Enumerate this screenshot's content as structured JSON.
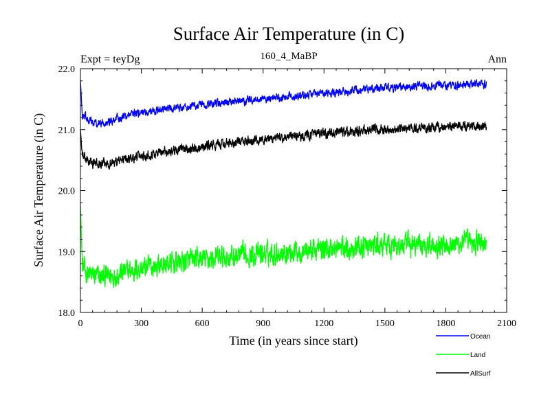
{
  "chart_data": {
    "type": "line",
    "title": "Surface Air Temperature (in C)",
    "subtitle": "160_4_MaBP",
    "left_label": "Expt = teyDg",
    "right_label": "Ann",
    "xlabel": "Time (in years since start)",
    "ylabel": "Surface Air Temperature (in C)",
    "xlim": [
      0,
      2100
    ],
    "ylim": [
      18.0,
      22.0
    ],
    "xticks": [
      0,
      300,
      600,
      900,
      1200,
      1500,
      1800,
      2100
    ],
    "xtick_labels": [
      "0",
      "300",
      "600",
      "900",
      "1200",
      "1500",
      "1800",
      "2100"
    ],
    "yticks": [
      18.0,
      19.0,
      20.0,
      21.0,
      22.0
    ],
    "ytick_labels": [
      "18.0",
      "19.0",
      "20.0",
      "21.0",
      "22.0"
    ],
    "legend_position": "bottom-right, outside plot",
    "series": [
      {
        "name": "Ocean",
        "color": "#0000ff",
        "x": [
          0,
          10,
          30,
          60,
          100,
          150,
          200,
          300,
          400,
          500,
          600,
          700,
          800,
          900,
          1000,
          1100,
          1200,
          1300,
          1400,
          1500,
          1600,
          1700,
          1800,
          1900,
          2000
        ],
        "values": [
          21.8,
          21.25,
          21.2,
          21.12,
          21.1,
          21.15,
          21.2,
          21.28,
          21.33,
          21.37,
          21.4,
          21.43,
          21.47,
          21.5,
          21.53,
          21.57,
          21.6,
          21.63,
          21.66,
          21.68,
          21.7,
          21.72,
          21.73,
          21.74,
          21.74
        ],
        "noise": 0.05
      },
      {
        "name": "Land",
        "color": "#00ff00",
        "x": [
          0,
          10,
          30,
          60,
          100,
          150,
          200,
          300,
          400,
          500,
          600,
          700,
          800,
          900,
          1000,
          1100,
          1200,
          1300,
          1400,
          1500,
          1600,
          1700,
          1800,
          1900,
          2000
        ],
        "values": [
          19.75,
          18.75,
          18.65,
          18.6,
          18.58,
          18.6,
          18.65,
          18.72,
          18.78,
          18.83,
          18.87,
          18.9,
          18.93,
          18.96,
          18.99,
          19.02,
          19.04,
          19.06,
          19.08,
          19.09,
          19.1,
          19.12,
          19.13,
          19.14,
          19.15
        ],
        "noise": 0.14
      },
      {
        "name": "AllSurf",
        "color": "#000000",
        "x": [
          0,
          10,
          30,
          60,
          100,
          150,
          200,
          300,
          400,
          500,
          600,
          700,
          800,
          900,
          1000,
          1100,
          1200,
          1300,
          1400,
          1500,
          1600,
          1700,
          1800,
          1900,
          2000
        ],
        "values": [
          21.0,
          20.55,
          20.5,
          20.45,
          20.43,
          20.45,
          20.5,
          20.57,
          20.63,
          20.68,
          20.72,
          20.76,
          20.8,
          20.84,
          20.87,
          20.9,
          20.93,
          20.96,
          20.98,
          21.0,
          21.02,
          21.03,
          21.04,
          21.05,
          21.05
        ],
        "noise": 0.06
      }
    ]
  }
}
